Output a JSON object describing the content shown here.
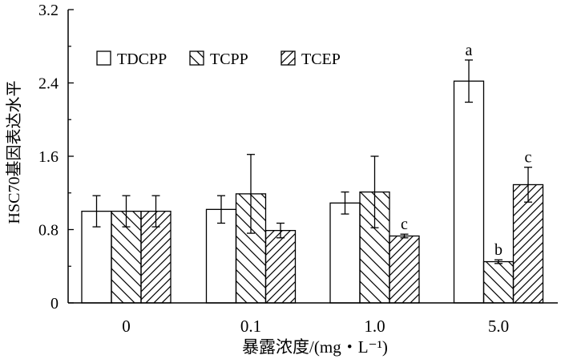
{
  "chart_data": {
    "type": "bar",
    "title": "",
    "xlabel": "暴露浓度/(mg・L⁻¹)",
    "ylabel": "HSC70基因表达水平",
    "ylim": [
      0,
      3.2
    ],
    "yticks": [
      0,
      0.8,
      1.6,
      2.4,
      3.2
    ],
    "ytick_labels": [
      "0",
      "0.8",
      "1.6",
      "2.4",
      "3.2"
    ],
    "grid": false,
    "legend_position": "top-left",
    "categories": [
      "0",
      "0.1",
      "1.0",
      "5.0"
    ],
    "series": [
      {
        "name": "TDCPP",
        "pattern": "none",
        "values": [
          1.0,
          1.02,
          1.09,
          2.42
        ],
        "errors": [
          0.17,
          0.15,
          0.12,
          0.23
        ],
        "annotations": [
          "",
          "",
          "",
          "a"
        ]
      },
      {
        "name": "TCPP",
        "pattern": "backslash",
        "values": [
          1.0,
          1.19,
          1.21,
          0.45
        ],
        "errors": [
          0.17,
          0.43,
          0.39,
          0.02
        ],
        "annotations": [
          "",
          "",
          "",
          "b"
        ]
      },
      {
        "name": "TCEP",
        "pattern": "slash",
        "values": [
          1.0,
          0.79,
          0.73,
          1.29
        ],
        "errors": [
          0.17,
          0.08,
          0.02,
          0.19
        ],
        "annotations": [
          "",
          "",
          "c",
          "c"
        ]
      }
    ]
  }
}
